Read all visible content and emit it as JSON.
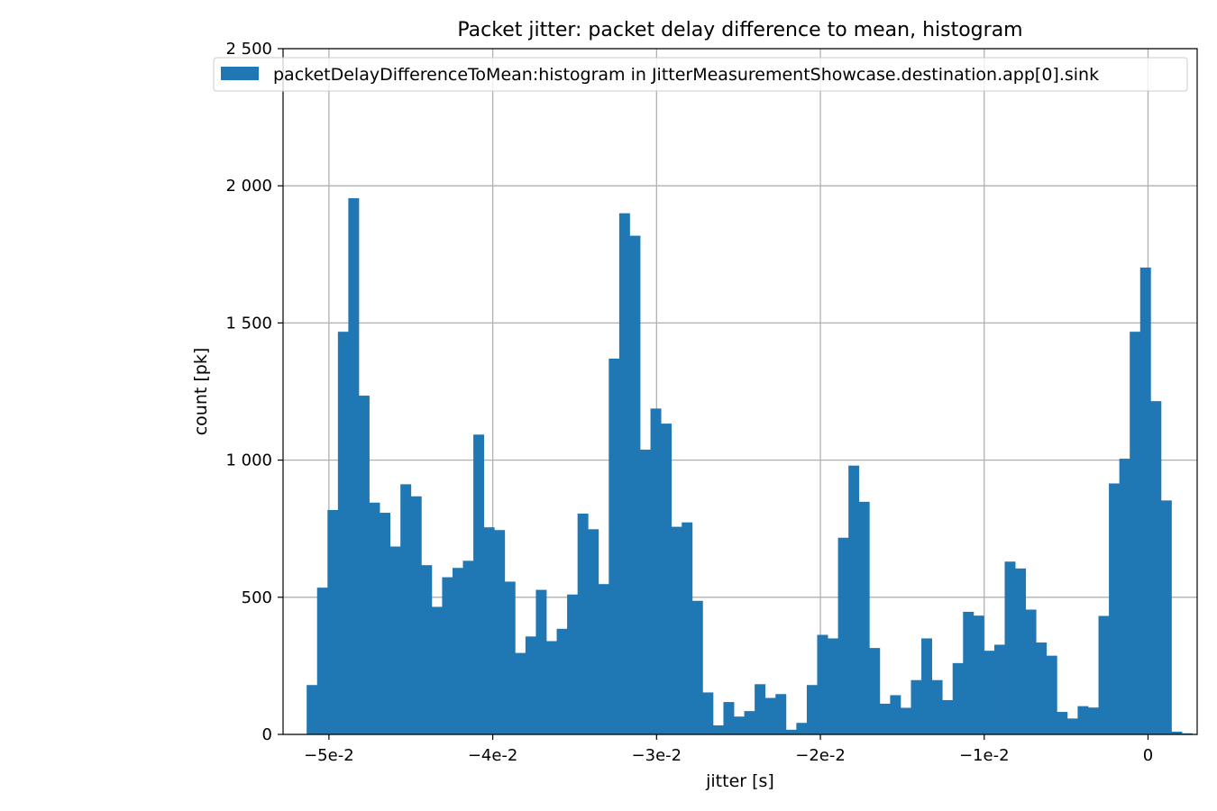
{
  "chart_data": {
    "type": "bar",
    "title": "Packet jitter: packet delay difference to mean, histogram",
    "xlabel": "jitter [s]",
    "ylabel": "count [pk]",
    "legend": {
      "placement": "top-right",
      "entries": [
        "packetDelayDifferenceToMean:histogram in JitterMeasurementShowcase.destination.app[0].sink"
      ]
    },
    "grid": true,
    "color": "#1f77b4",
    "xlim": [
      -0.0528,
      0.003
    ],
    "ylim": [
      0,
      2500
    ],
    "xticks": [
      {
        "value": -0.05,
        "label": "−5e-2"
      },
      {
        "value": -0.04,
        "label": "−4e-2"
      },
      {
        "value": -0.03,
        "label": "−3e-2"
      },
      {
        "value": -0.02,
        "label": "−2e-2"
      },
      {
        "value": -0.01,
        "label": "−1e-2"
      },
      {
        "value": 0,
        "label": "0"
      }
    ],
    "yticks": [
      {
        "value": 0,
        "label": "0"
      },
      {
        "value": 500,
        "label": "500"
      },
      {
        "value": 1000,
        "label": "1 000"
      },
      {
        "value": 1500,
        "label": "1 500"
      },
      {
        "value": 2000,
        "label": "2 000"
      },
      {
        "value": 2500,
        "label": "2 500"
      }
    ],
    "bin_start": -0.05136,
    "bin_width": 0.000636,
    "values": [
      180,
      535,
      818,
      1468,
      1955,
      1235,
      845,
      808,
      685,
      912,
      868,
      617,
      465,
      573,
      607,
      633,
      1093,
      755,
      745,
      557,
      297,
      357,
      527,
      340,
      385,
      510,
      805,
      748,
      548,
      1370,
      1900,
      1818,
      1038,
      1188,
      1133,
      757,
      773,
      487,
      153,
      33,
      118,
      65,
      85,
      183,
      133,
      147,
      17,
      42,
      180,
      363,
      350,
      717,
      980,
      848,
      315,
      112,
      143,
      97,
      198,
      350,
      198,
      125,
      260,
      447,
      433,
      305,
      327,
      630,
      605,
      455,
      335,
      287,
      82,
      58,
      103,
      98,
      432,
      915,
      1005,
      1468,
      1702,
      1215,
      853,
      10,
      4
    ]
  }
}
